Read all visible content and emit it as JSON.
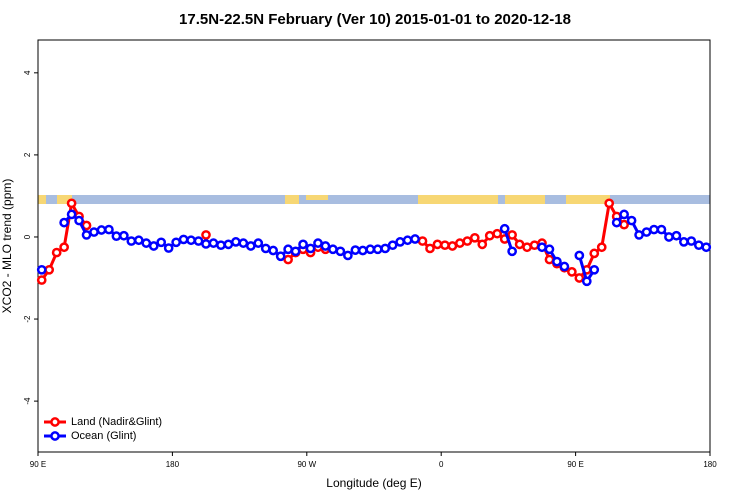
{
  "chart_data": {
    "type": "line",
    "title": "17.5N-22.5N February (Ver 10)   2015-01-01 to 2020-12-18",
    "x_label": "Longitude (deg E)",
    "y_label": "XCO2 - MLO trend (ppm)",
    "x": [
      92.5,
      97.5,
      102.5,
      107.5,
      112.5,
      117.5,
      122.5,
      127.5,
      132.5,
      137.5,
      142.5,
      147.5,
      152.5,
      157.5,
      162.5,
      167.5,
      172.5,
      177.5,
      182.5,
      187.5,
      192.5,
      197.5,
      202.5,
      207.5,
      212.5,
      217.5,
      222.5,
      227.5,
      232.5,
      237.5,
      242.5,
      247.5,
      252.5,
      257.5,
      262.5,
      267.5,
      272.5,
      277.5,
      282.5,
      287.5,
      292.5,
      297.5,
      302.5,
      307.5,
      312.5,
      317.5,
      322.5,
      327.5,
      332.5,
      337.5,
      342.5,
      347.5,
      352.5,
      357.5,
      362.5,
      367.5,
      372.5,
      377.5,
      382.5,
      387.5,
      392.5,
      397.5,
      402.5,
      407.5,
      412.5,
      417.5,
      422.5,
      427.5,
      432.5,
      437.5,
      442.5,
      447.5,
      452.5,
      457.5,
      462.5,
      467.5,
      472.5,
      477.5,
      482.5,
      487.5,
      492.5,
      497.5,
      502.5,
      507.5,
      512.5,
      517.5,
      522.5,
      527.5,
      532.5,
      537.5
    ],
    "series": [
      {
        "name": "Land (Nadir&Glint)",
        "color": "#ff0000",
        "values": [
          -1.05,
          -0.8,
          -0.38,
          -0.25,
          0.82,
          0.5,
          0.28,
          null,
          null,
          null,
          null,
          null,
          null,
          null,
          null,
          null,
          null,
          null,
          null,
          null,
          null,
          null,
          0.05,
          null,
          null,
          null,
          null,
          null,
          null,
          null,
          null,
          null,
          null,
          -0.55,
          -0.38,
          -0.3,
          -0.38,
          -0.25,
          -0.3,
          null,
          null,
          null,
          null,
          null,
          null,
          null,
          null,
          null,
          null,
          null,
          null,
          -0.1,
          -0.28,
          -0.18,
          -0.2,
          -0.22,
          -0.15,
          -0.1,
          -0.02,
          -0.18,
          0.03,
          0.08,
          -0.05,
          0.05,
          -0.18,
          -0.25,
          -0.2,
          -0.15,
          -0.55,
          -0.65,
          -0.75,
          -0.85,
          -1.0,
          -0.8,
          -0.4,
          -0.25,
          0.82,
          0.5,
          0.3,
          null,
          null,
          null,
          null,
          null,
          null,
          null,
          null,
          null,
          null,
          null
        ]
      },
      {
        "name": "Ocean (Glint)",
        "color": "#0000ff",
        "values": [
          -0.8,
          null,
          null,
          0.35,
          0.55,
          0.4,
          0.05,
          0.12,
          0.17,
          0.18,
          0.02,
          0.03,
          -0.1,
          -0.08,
          -0.15,
          -0.22,
          -0.13,
          -0.27,
          -0.13,
          -0.06,
          -0.08,
          -0.1,
          -0.17,
          -0.15,
          -0.2,
          -0.18,
          -0.12,
          -0.15,
          -0.22,
          -0.15,
          -0.28,
          -0.33,
          -0.47,
          -0.3,
          -0.35,
          -0.18,
          -0.28,
          -0.15,
          -0.22,
          -0.3,
          -0.35,
          -0.45,
          -0.32,
          -0.33,
          -0.3,
          -0.3,
          -0.28,
          -0.2,
          -0.12,
          -0.08,
          -0.05,
          null,
          null,
          null,
          null,
          null,
          null,
          null,
          null,
          null,
          null,
          null,
          0.2,
          -0.35,
          null,
          null,
          null,
          -0.25,
          -0.3,
          -0.6,
          -0.72,
          null,
          -0.45,
          -1.08,
          -0.8,
          null,
          null,
          0.35,
          0.55,
          0.4,
          0.05,
          0.12,
          0.18,
          0.18,
          0.0,
          0.03,
          -0.12,
          -0.1,
          -0.2,
          -0.25
        ]
      }
    ],
    "xlim": [
      90,
      540
    ],
    "xticks": [
      {
        "value": 90,
        "label": "90 E"
      },
      180,
      {
        "value": 270,
        "label": "90 W"
      },
      {
        "value": 360,
        "label": "0"
      },
      {
        "value": 450,
        "label": "90 E"
      },
      {
        "value": 540,
        "label": "180"
      }
    ],
    "ylim": [
      -5.24,
      4.8
    ],
    "yticks": [
      -4,
      -2,
      0,
      2,
      4
    ],
    "legend": "bottom-left"
  }
}
